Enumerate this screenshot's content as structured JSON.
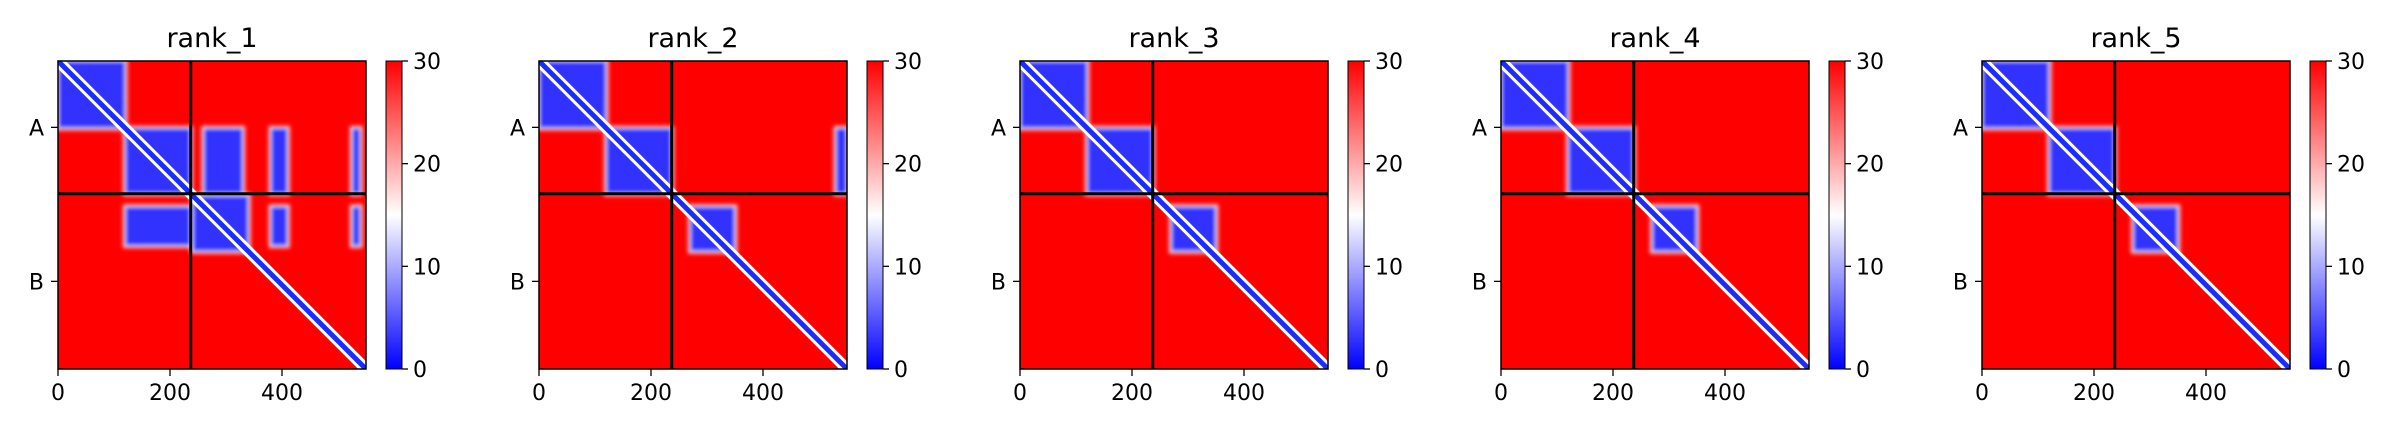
{
  "chart_data": [
    {
      "type": "heatmap",
      "title": "rank_1",
      "x_ticks": [
        0,
        200,
        400
      ],
      "y_tick_labels": [
        "A",
        "B"
      ],
      "x_range": [
        0,
        550
      ],
      "chain_boundary": 237,
      "colorbar": {
        "min": 0,
        "max": 30,
        "ticks": [
          0,
          10,
          20,
          30
        ],
        "colormap": "bwr"
      },
      "low_error_blocks": [
        {
          "x": [
            0,
            120
          ],
          "y": [
            0,
            120
          ]
        },
        {
          "x": [
            120,
            237
          ],
          "y": [
            120,
            237
          ]
        },
        {
          "x": [
            240,
            340
          ],
          "y": [
            240,
            340
          ]
        },
        {
          "x": [
            120,
            237
          ],
          "y": [
            260,
            330
          ]
        },
        {
          "x": [
            260,
            330
          ],
          "y": [
            120,
            237
          ]
        },
        {
          "x": [
            380,
            410
          ],
          "y": [
            120,
            237
          ]
        },
        {
          "x": [
            525,
            540
          ],
          "y": [
            120,
            237
          ]
        },
        {
          "x": [
            380,
            410
          ],
          "y": [
            260,
            330
          ]
        },
        {
          "x": [
            525,
            540
          ],
          "y": [
            260,
            330
          ]
        }
      ]
    },
    {
      "type": "heatmap",
      "title": "rank_2",
      "x_ticks": [
        0,
        200,
        400
      ],
      "y_tick_labels": [
        "A",
        "B"
      ],
      "x_range": [
        0,
        550
      ],
      "chain_boundary": 237,
      "colorbar": {
        "min": 0,
        "max": 30,
        "ticks": [
          0,
          10,
          20,
          30
        ],
        "colormap": "bwr"
      },
      "low_error_blocks": [
        {
          "x": [
            0,
            120
          ],
          "y": [
            0,
            120
          ]
        },
        {
          "x": [
            120,
            237
          ],
          "y": [
            120,
            237
          ]
        },
        {
          "x": [
            270,
            350
          ],
          "y": [
            260,
            340
          ]
        },
        {
          "x": [
            530,
            550
          ],
          "y": [
            120,
            237
          ]
        }
      ]
    },
    {
      "type": "heatmap",
      "title": "rank_3",
      "x_ticks": [
        0,
        200,
        400
      ],
      "y_tick_labels": [
        "A",
        "B"
      ],
      "x_range": [
        0,
        550
      ],
      "chain_boundary": 237,
      "colorbar": {
        "min": 0,
        "max": 30,
        "ticks": [
          0,
          10,
          20,
          30
        ],
        "colormap": "bwr"
      },
      "low_error_blocks": [
        {
          "x": [
            0,
            120
          ],
          "y": [
            0,
            120
          ]
        },
        {
          "x": [
            120,
            237
          ],
          "y": [
            120,
            237
          ]
        },
        {
          "x": [
            270,
            350
          ],
          "y": [
            260,
            340
          ]
        }
      ]
    },
    {
      "type": "heatmap",
      "title": "rank_4",
      "x_ticks": [
        0,
        200,
        400
      ],
      "y_tick_labels": [
        "A",
        "B"
      ],
      "x_range": [
        0,
        550
      ],
      "chain_boundary": 237,
      "colorbar": {
        "min": 0,
        "max": 30,
        "ticks": [
          0,
          10,
          20,
          30
        ],
        "colormap": "bwr"
      },
      "low_error_blocks": [
        {
          "x": [
            0,
            120
          ],
          "y": [
            0,
            120
          ]
        },
        {
          "x": [
            120,
            237
          ],
          "y": [
            120,
            237
          ]
        },
        {
          "x": [
            270,
            350
          ],
          "y": [
            260,
            340
          ]
        }
      ]
    },
    {
      "type": "heatmap",
      "title": "rank_5",
      "x_ticks": [
        0,
        200,
        400
      ],
      "y_tick_labels": [
        "A",
        "B"
      ],
      "x_range": [
        0,
        550
      ],
      "chain_boundary": 237,
      "colorbar": {
        "min": 0,
        "max": 30,
        "ticks": [
          0,
          10,
          20,
          30
        ],
        "colormap": "bwr"
      },
      "low_error_blocks": [
        {
          "x": [
            0,
            120
          ],
          "y": [
            0,
            120
          ]
        },
        {
          "x": [
            120,
            237
          ],
          "y": [
            120,
            237
          ]
        },
        {
          "x": [
            270,
            350
          ],
          "y": [
            260,
            340
          ]
        }
      ]
    }
  ]
}
